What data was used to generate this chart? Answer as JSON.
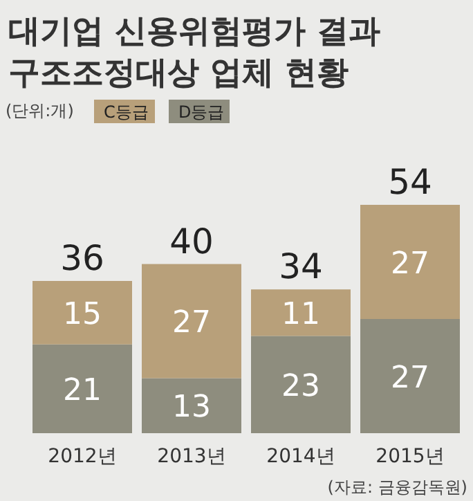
{
  "chart_data": {
    "type": "bar",
    "stacked": true,
    "title": "대기업 신용위험평가 결과\n구조조정대상 업체 현황",
    "categories": [
      "2012년",
      "2013년",
      "2014년",
      "2015년"
    ],
    "series": [
      {
        "name": "D등급",
        "color": "#8e8d7e",
        "values": [
          21,
          13,
          23,
          27
        ]
      },
      {
        "name": "C등급",
        "color": "#b8a07a",
        "values": [
          15,
          27,
          11,
          27
        ]
      }
    ],
    "data_labels": true,
    "totals": [
      "36",
      "40",
      "34",
      "54"
    ],
    "legend": "top left",
    "annotations": [
      "(단위:개)",
      "(자료: 금융감독원)"
    ]
  }
}
